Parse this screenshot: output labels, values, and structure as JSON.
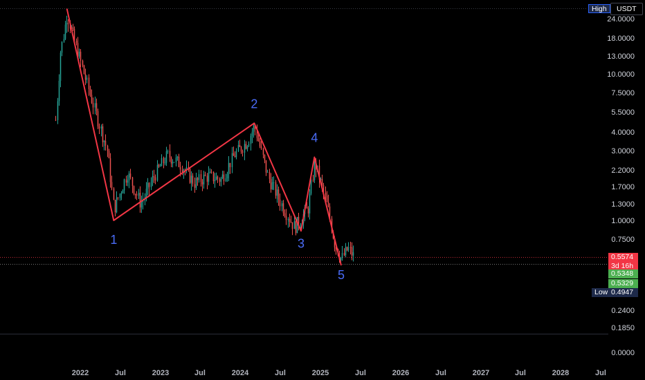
{
  "header": {
    "high_label": "High",
    "currency_label": "USDT"
  },
  "price_tags": {
    "last_price": "0.5574",
    "countdown": "3d 16h",
    "bid_price": "0.5348",
    "ask_price": "0.5329",
    "low_label": "Low",
    "low_price": "0.4947"
  },
  "colors": {
    "background": "#000000",
    "up_candle": "#26a69a",
    "down_candle": "#ef5350",
    "wave_line": "#f23645",
    "wave_label": "#4a6cf7",
    "tag_red": "#f23645",
    "tag_green": "#4caf50",
    "tag_navy": "#1e2a4a"
  },
  "chart_data": {
    "type": "candlestick",
    "y_scale": "log",
    "y_ticks": [
      "24.0000",
      "18.0000",
      "13.0000",
      "10.0000",
      "7.5000",
      "5.5000",
      "4.0000",
      "3.0000",
      "2.2000",
      "1.7000",
      "1.3000",
      "1.0000",
      "0.7500",
      "0.2400",
      "0.1850",
      "0.0000"
    ],
    "x_ticks": [
      "2022",
      "Jul",
      "2023",
      "Jul",
      "2024",
      "Jul",
      "2025",
      "Jul",
      "2026",
      "Jul",
      "2027",
      "Jul",
      "2028",
      "Jul"
    ],
    "wave_points": [
      {
        "label": "",
        "time": "2021-11",
        "price": 28.0
      },
      {
        "label": "1",
        "time": "2022-06",
        "price": 1.0
      },
      {
        "label": "2",
        "time": "2024-03",
        "price": 4.6
      },
      {
        "label": "3",
        "time": "2024-10",
        "price": 0.85
      },
      {
        "label": "4",
        "time": "2024-12",
        "price": 2.7
      },
      {
        "label": "5",
        "time": "2025-04",
        "price": 0.5
      }
    ],
    "price_anchors": [
      {
        "time": "2021-09",
        "price": 3.0
      },
      {
        "time": "2021-10",
        "price": 14.0
      },
      {
        "time": "2021-11",
        "price": 26.0
      },
      {
        "time": "2022-01",
        "price": 12.0
      },
      {
        "time": "2022-03",
        "price": 6.0
      },
      {
        "time": "2022-05",
        "price": 3.0
      },
      {
        "time": "2022-06",
        "price": 1.2
      },
      {
        "time": "2022-08",
        "price": 2.1
      },
      {
        "time": "2022-10",
        "price": 1.3
      },
      {
        "time": "2022-12",
        "price": 2.0
      },
      {
        "time": "2023-02",
        "price": 2.8
      },
      {
        "time": "2023-04",
        "price": 2.4
      },
      {
        "time": "2023-06",
        "price": 1.8
      },
      {
        "time": "2023-08",
        "price": 2.0
      },
      {
        "time": "2023-10",
        "price": 1.9
      },
      {
        "time": "2023-12",
        "price": 2.8
      },
      {
        "time": "2024-02",
        "price": 3.5
      },
      {
        "time": "2024-03",
        "price": 4.4
      },
      {
        "time": "2024-05",
        "price": 2.0
      },
      {
        "time": "2024-07",
        "price": 1.3
      },
      {
        "time": "2024-09",
        "price": 0.9
      },
      {
        "time": "2024-11",
        "price": 1.2
      },
      {
        "time": "2024-12",
        "price": 2.5
      },
      {
        "time": "2025-02",
        "price": 1.2
      },
      {
        "time": "2025-03",
        "price": 0.7
      },
      {
        "time": "2025-04",
        "price": 0.55
      },
      {
        "time": "2025-05",
        "price": 0.65
      },
      {
        "time": "2025-06",
        "price": 0.56
      }
    ]
  }
}
